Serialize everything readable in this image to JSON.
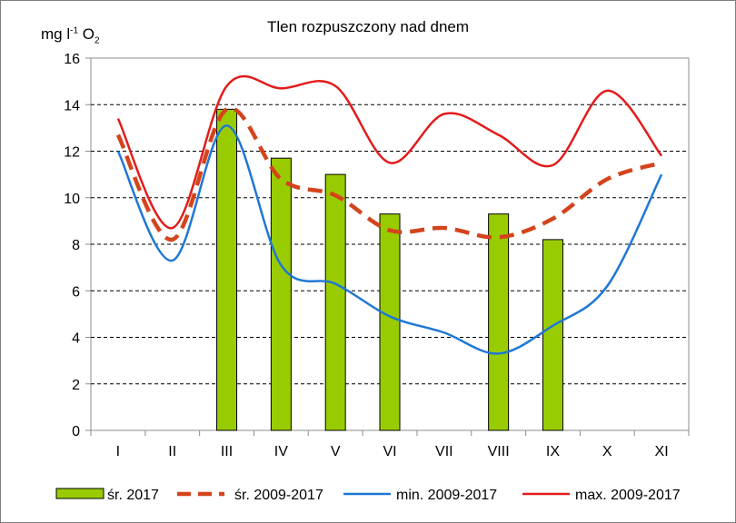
{
  "chart_data": {
    "type": "bar",
    "title": "Tlen rozpuszczony nad dnem",
    "ylabel": {
      "base": "mg l",
      "sup": "-1",
      "mid": " O",
      "sub": "2"
    },
    "categories": [
      "I",
      "II",
      "III",
      "IV",
      "V",
      "VI",
      "VII",
      "VIII",
      "IX",
      "X",
      "XI"
    ],
    "ylim": [
      0,
      16
    ],
    "yticks": [
      0,
      2,
      4,
      6,
      8,
      10,
      12,
      14,
      16
    ],
    "grid": true,
    "legend_position": "bottom",
    "series": [
      {
        "name": "śr. 2017",
        "kind": "bar",
        "color": "#99cc00",
        "values": [
          null,
          null,
          13.8,
          11.7,
          11.0,
          9.3,
          null,
          9.3,
          8.2,
          null,
          null
        ]
      },
      {
        "name": "śr. 2009-2017",
        "kind": "line-dashed",
        "color": "#d4441c",
        "values": [
          12.7,
          8.2,
          13.8,
          10.8,
          10.1,
          8.6,
          8.7,
          8.3,
          9.1,
          10.8,
          11.5
        ]
      },
      {
        "name": "min. 2009-2017",
        "kind": "line",
        "color": "#1f77d4",
        "values": [
          12.0,
          7.3,
          13.1,
          7.1,
          6.3,
          4.9,
          4.2,
          3.3,
          4.5,
          6.2,
          11.0
        ]
      },
      {
        "name": "max. 2009-2017",
        "kind": "line",
        "color": "#e31b1b",
        "values": [
          13.4,
          8.7,
          14.8,
          14.7,
          14.8,
          11.5,
          13.6,
          12.7,
          11.4,
          14.6,
          11.8
        ]
      }
    ]
  }
}
